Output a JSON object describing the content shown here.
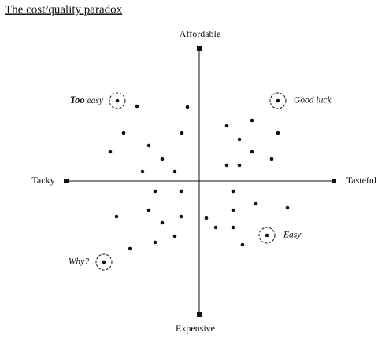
{
  "title": "The cost/quality paradox",
  "axes": {
    "top": "Affordable",
    "bottom": "Expensive",
    "left": "Tacky",
    "right": "Tasteful"
  },
  "annotations": [
    {
      "label": "Too easy"
    },
    {
      "label": "Good luck"
    },
    {
      "label": "Easy"
    },
    {
      "label": "Why?"
    }
  ]
}
